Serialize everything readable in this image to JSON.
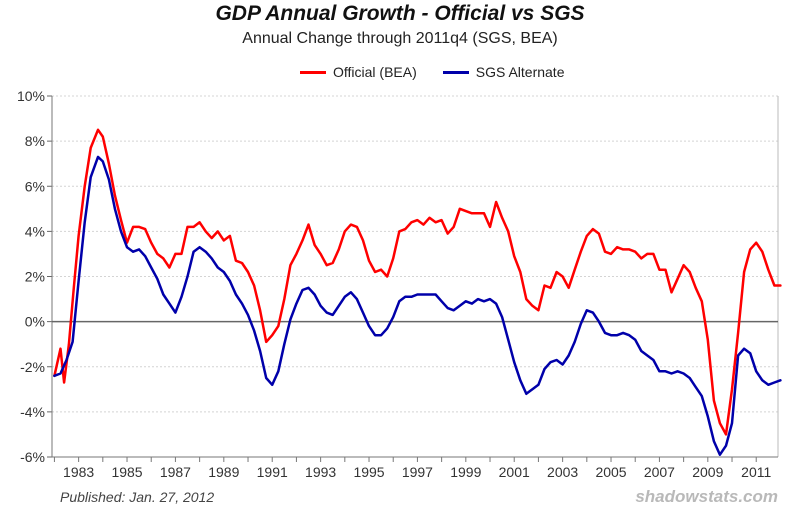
{
  "chart_data": {
    "type": "line",
    "title": "GDP Annual Growth - Official vs SGS",
    "subtitle": "Annual Change through 2011q4  (SGS, BEA)",
    "xlabel": "",
    "ylabel": "",
    "xlim": [
      1981.9,
      2011.9
    ],
    "ylim": [
      -6,
      10
    ],
    "y_ticks": [
      10,
      8,
      6,
      4,
      2,
      0,
      -2,
      -4,
      -6
    ],
    "y_tick_labels": [
      "10%",
      "8%",
      "6%",
      "4%",
      "2%",
      "0%",
      "-2%",
      "-4%",
      "-6%"
    ],
    "x_ticks": [
      1983,
      1985,
      1987,
      1989,
      1991,
      1993,
      1995,
      1997,
      1999,
      2001,
      2003,
      2005,
      2007,
      2009,
      2011
    ],
    "x_tick_labels": [
      "1983",
      "1985",
      "1987",
      "1989",
      "1991",
      "1993",
      "1995",
      "1997",
      "1999",
      "2001",
      "2003",
      "2005",
      "2007",
      "2009",
      "2011"
    ],
    "grid": "horizontal",
    "zero_line": true,
    "legend_position": "top",
    "series": [
      {
        "name": "Official (BEA)",
        "color": "#ff0000",
        "points": [
          [
            1982.0,
            -2.4
          ],
          [
            1982.25,
            -1.2
          ],
          [
            1982.4,
            -2.7
          ],
          [
            1982.6,
            -1.0
          ],
          [
            1982.8,
            1.5
          ],
          [
            1983.0,
            3.8
          ],
          [
            1983.25,
            6.0
          ],
          [
            1983.5,
            7.7
          ],
          [
            1983.8,
            8.5
          ],
          [
            1984.0,
            8.2
          ],
          [
            1984.25,
            7.0
          ],
          [
            1984.5,
            5.6
          ],
          [
            1984.75,
            4.5
          ],
          [
            1985.0,
            3.5
          ],
          [
            1985.25,
            4.2
          ],
          [
            1985.5,
            4.2
          ],
          [
            1985.75,
            4.1
          ],
          [
            1986.0,
            3.5
          ],
          [
            1986.25,
            3.0
          ],
          [
            1986.5,
            2.8
          ],
          [
            1986.75,
            2.4
          ],
          [
            1987.0,
            3.0
          ],
          [
            1987.25,
            3.0
          ],
          [
            1987.5,
            4.2
          ],
          [
            1987.75,
            4.2
          ],
          [
            1988.0,
            4.4
          ],
          [
            1988.25,
            4.0
          ],
          [
            1988.5,
            3.7
          ],
          [
            1988.75,
            4.0
          ],
          [
            1989.0,
            3.6
          ],
          [
            1989.25,
            3.8
          ],
          [
            1989.5,
            2.7
          ],
          [
            1989.75,
            2.6
          ],
          [
            1990.0,
            2.2
          ],
          [
            1990.25,
            1.6
          ],
          [
            1990.5,
            0.5
          ],
          [
            1990.75,
            -0.9
          ],
          [
            1991.0,
            -0.6
          ],
          [
            1991.25,
            -0.2
          ],
          [
            1991.5,
            1.0
          ],
          [
            1991.75,
            2.5
          ],
          [
            1992.0,
            3.0
          ],
          [
            1992.25,
            3.6
          ],
          [
            1992.5,
            4.3
          ],
          [
            1992.75,
            3.4
          ],
          [
            1993.0,
            3.0
          ],
          [
            1993.25,
            2.5
          ],
          [
            1993.5,
            2.6
          ],
          [
            1993.75,
            3.2
          ],
          [
            1994.0,
            4.0
          ],
          [
            1994.25,
            4.3
          ],
          [
            1994.5,
            4.2
          ],
          [
            1994.75,
            3.6
          ],
          [
            1995.0,
            2.7
          ],
          [
            1995.25,
            2.2
          ],
          [
            1995.5,
            2.3
          ],
          [
            1995.75,
            2.0
          ],
          [
            1996.0,
            2.8
          ],
          [
            1996.25,
            4.0
          ],
          [
            1996.5,
            4.1
          ],
          [
            1996.75,
            4.4
          ],
          [
            1997.0,
            4.5
          ],
          [
            1997.25,
            4.3
          ],
          [
            1997.5,
            4.6
          ],
          [
            1997.75,
            4.4
          ],
          [
            1998.0,
            4.5
          ],
          [
            1998.25,
            3.9
          ],
          [
            1998.5,
            4.2
          ],
          [
            1998.75,
            5.0
          ],
          [
            1999.0,
            4.9
          ],
          [
            1999.25,
            4.8
          ],
          [
            1999.5,
            4.8
          ],
          [
            1999.75,
            4.8
          ],
          [
            2000.0,
            4.2
          ],
          [
            2000.25,
            5.3
          ],
          [
            2000.5,
            4.6
          ],
          [
            2000.75,
            4.0
          ],
          [
            2001.0,
            2.9
          ],
          [
            2001.25,
            2.2
          ],
          [
            2001.5,
            1.0
          ],
          [
            2001.75,
            0.7
          ],
          [
            2002.0,
            0.5
          ],
          [
            2002.25,
            1.6
          ],
          [
            2002.5,
            1.5
          ],
          [
            2002.75,
            2.2
          ],
          [
            2003.0,
            2.0
          ],
          [
            2003.25,
            1.5
          ],
          [
            2003.5,
            2.3
          ],
          [
            2003.75,
            3.1
          ],
          [
            2004.0,
            3.8
          ],
          [
            2004.25,
            4.1
          ],
          [
            2004.5,
            3.9
          ],
          [
            2004.75,
            3.1
          ],
          [
            2005.0,
            3.0
          ],
          [
            2005.25,
            3.3
          ],
          [
            2005.5,
            3.2
          ],
          [
            2005.75,
            3.2
          ],
          [
            2006.0,
            3.1
          ],
          [
            2006.25,
            2.8
          ],
          [
            2006.5,
            3.0
          ],
          [
            2006.75,
            3.0
          ],
          [
            2007.0,
            2.3
          ],
          [
            2007.25,
            2.3
          ],
          [
            2007.5,
            1.3
          ],
          [
            2007.75,
            1.9
          ],
          [
            2008.0,
            2.5
          ],
          [
            2008.25,
            2.2
          ],
          [
            2008.5,
            1.5
          ],
          [
            2008.75,
            0.9
          ],
          [
            2009.0,
            -0.8
          ],
          [
            2009.25,
            -3.5
          ],
          [
            2009.5,
            -4.5
          ],
          [
            2009.75,
            -5.0
          ],
          [
            2010.0,
            -3.0
          ],
          [
            2010.25,
            -0.5
          ],
          [
            2010.5,
            2.2
          ],
          [
            2010.75,
            3.2
          ],
          [
            2011.0,
            3.5
          ],
          [
            2011.25,
            3.1
          ],
          [
            2011.5,
            2.3
          ],
          [
            2011.75,
            1.6
          ],
          [
            2012.0,
            1.6
          ]
        ]
      },
      {
        "name": "SGS Alternate",
        "color": "#0000aa",
        "points": [
          [
            1982.0,
            -2.4
          ],
          [
            1982.25,
            -2.3
          ],
          [
            1982.5,
            -1.7
          ],
          [
            1982.75,
            -0.9
          ],
          [
            1983.0,
            1.8
          ],
          [
            1983.25,
            4.4
          ],
          [
            1983.5,
            6.4
          ],
          [
            1983.8,
            7.3
          ],
          [
            1984.0,
            7.1
          ],
          [
            1984.25,
            6.3
          ],
          [
            1984.5,
            5.0
          ],
          [
            1984.75,
            4.0
          ],
          [
            1985.0,
            3.3
          ],
          [
            1985.25,
            3.1
          ],
          [
            1985.5,
            3.2
          ],
          [
            1985.75,
            2.9
          ],
          [
            1986.0,
            2.4
          ],
          [
            1986.25,
            1.9
          ],
          [
            1986.5,
            1.2
          ],
          [
            1986.75,
            0.8
          ],
          [
            1987.0,
            0.4
          ],
          [
            1987.25,
            1.1
          ],
          [
            1987.5,
            2.0
          ],
          [
            1987.75,
            3.1
          ],
          [
            1988.0,
            3.3
          ],
          [
            1988.25,
            3.1
          ],
          [
            1988.5,
            2.8
          ],
          [
            1988.75,
            2.4
          ],
          [
            1989.0,
            2.2
          ],
          [
            1989.25,
            1.8
          ],
          [
            1989.5,
            1.2
          ],
          [
            1989.75,
            0.8
          ],
          [
            1990.0,
            0.3
          ],
          [
            1990.25,
            -0.4
          ],
          [
            1990.5,
            -1.3
          ],
          [
            1990.75,
            -2.5
          ],
          [
            1991.0,
            -2.8
          ],
          [
            1991.25,
            -2.2
          ],
          [
            1991.5,
            -1.0
          ],
          [
            1991.75,
            0.1
          ],
          [
            1992.0,
            0.8
          ],
          [
            1992.25,
            1.4
          ],
          [
            1992.5,
            1.5
          ],
          [
            1992.75,
            1.2
          ],
          [
            1993.0,
            0.7
          ],
          [
            1993.25,
            0.4
          ],
          [
            1993.5,
            0.3
          ],
          [
            1993.75,
            0.7
          ],
          [
            1994.0,
            1.1
          ],
          [
            1994.25,
            1.3
          ],
          [
            1994.5,
            1.0
          ],
          [
            1994.75,
            0.4
          ],
          [
            1995.0,
            -0.2
          ],
          [
            1995.25,
            -0.6
          ],
          [
            1995.5,
            -0.6
          ],
          [
            1995.75,
            -0.3
          ],
          [
            1996.0,
            0.2
          ],
          [
            1996.25,
            0.9
          ],
          [
            1996.5,
            1.1
          ],
          [
            1996.75,
            1.1
          ],
          [
            1997.0,
            1.2
          ],
          [
            1997.25,
            1.2
          ],
          [
            1997.5,
            1.2
          ],
          [
            1997.75,
            1.2
          ],
          [
            1998.0,
            0.9
          ],
          [
            1998.25,
            0.6
          ],
          [
            1998.5,
            0.5
          ],
          [
            1998.75,
            0.7
          ],
          [
            1999.0,
            0.9
          ],
          [
            1999.25,
            0.8
          ],
          [
            1999.5,
            1.0
          ],
          [
            1999.75,
            0.9
          ],
          [
            2000.0,
            1.0
          ],
          [
            2000.25,
            0.8
          ],
          [
            2000.5,
            0.2
          ],
          [
            2000.75,
            -0.8
          ],
          [
            2001.0,
            -1.8
          ],
          [
            2001.25,
            -2.6
          ],
          [
            2001.5,
            -3.2
          ],
          [
            2001.75,
            -3.0
          ],
          [
            2002.0,
            -2.8
          ],
          [
            2002.25,
            -2.1
          ],
          [
            2002.5,
            -1.8
          ],
          [
            2002.75,
            -1.7
          ],
          [
            2003.0,
            -1.9
          ],
          [
            2003.25,
            -1.5
          ],
          [
            2003.5,
            -0.9
          ],
          [
            2003.75,
            -0.1
          ],
          [
            2004.0,
            0.5
          ],
          [
            2004.25,
            0.4
          ],
          [
            2004.5,
            0.0
          ],
          [
            2004.75,
            -0.5
          ],
          [
            2005.0,
            -0.6
          ],
          [
            2005.25,
            -0.6
          ],
          [
            2005.5,
            -0.5
          ],
          [
            2005.75,
            -0.6
          ],
          [
            2006.0,
            -0.8
          ],
          [
            2006.25,
            -1.3
          ],
          [
            2006.5,
            -1.5
          ],
          [
            2006.75,
            -1.7
          ],
          [
            2007.0,
            -2.2
          ],
          [
            2007.25,
            -2.2
          ],
          [
            2007.5,
            -2.3
          ],
          [
            2007.75,
            -2.2
          ],
          [
            2008.0,
            -2.3
          ],
          [
            2008.25,
            -2.5
          ],
          [
            2008.5,
            -2.9
          ],
          [
            2008.75,
            -3.3
          ],
          [
            2009.0,
            -4.2
          ],
          [
            2009.25,
            -5.3
          ],
          [
            2009.5,
            -5.9
          ],
          [
            2009.75,
            -5.5
          ],
          [
            2010.0,
            -4.5
          ],
          [
            2010.25,
            -1.5
          ],
          [
            2010.5,
            -1.2
          ],
          [
            2010.75,
            -1.4
          ],
          [
            2011.0,
            -2.2
          ],
          [
            2011.25,
            -2.6
          ],
          [
            2011.5,
            -2.8
          ],
          [
            2011.75,
            -2.7
          ],
          [
            2012.0,
            -2.6
          ]
        ]
      }
    ]
  },
  "footer": {
    "published": "Published: Jan. 27, 2012",
    "source": "shadowstats.com"
  }
}
